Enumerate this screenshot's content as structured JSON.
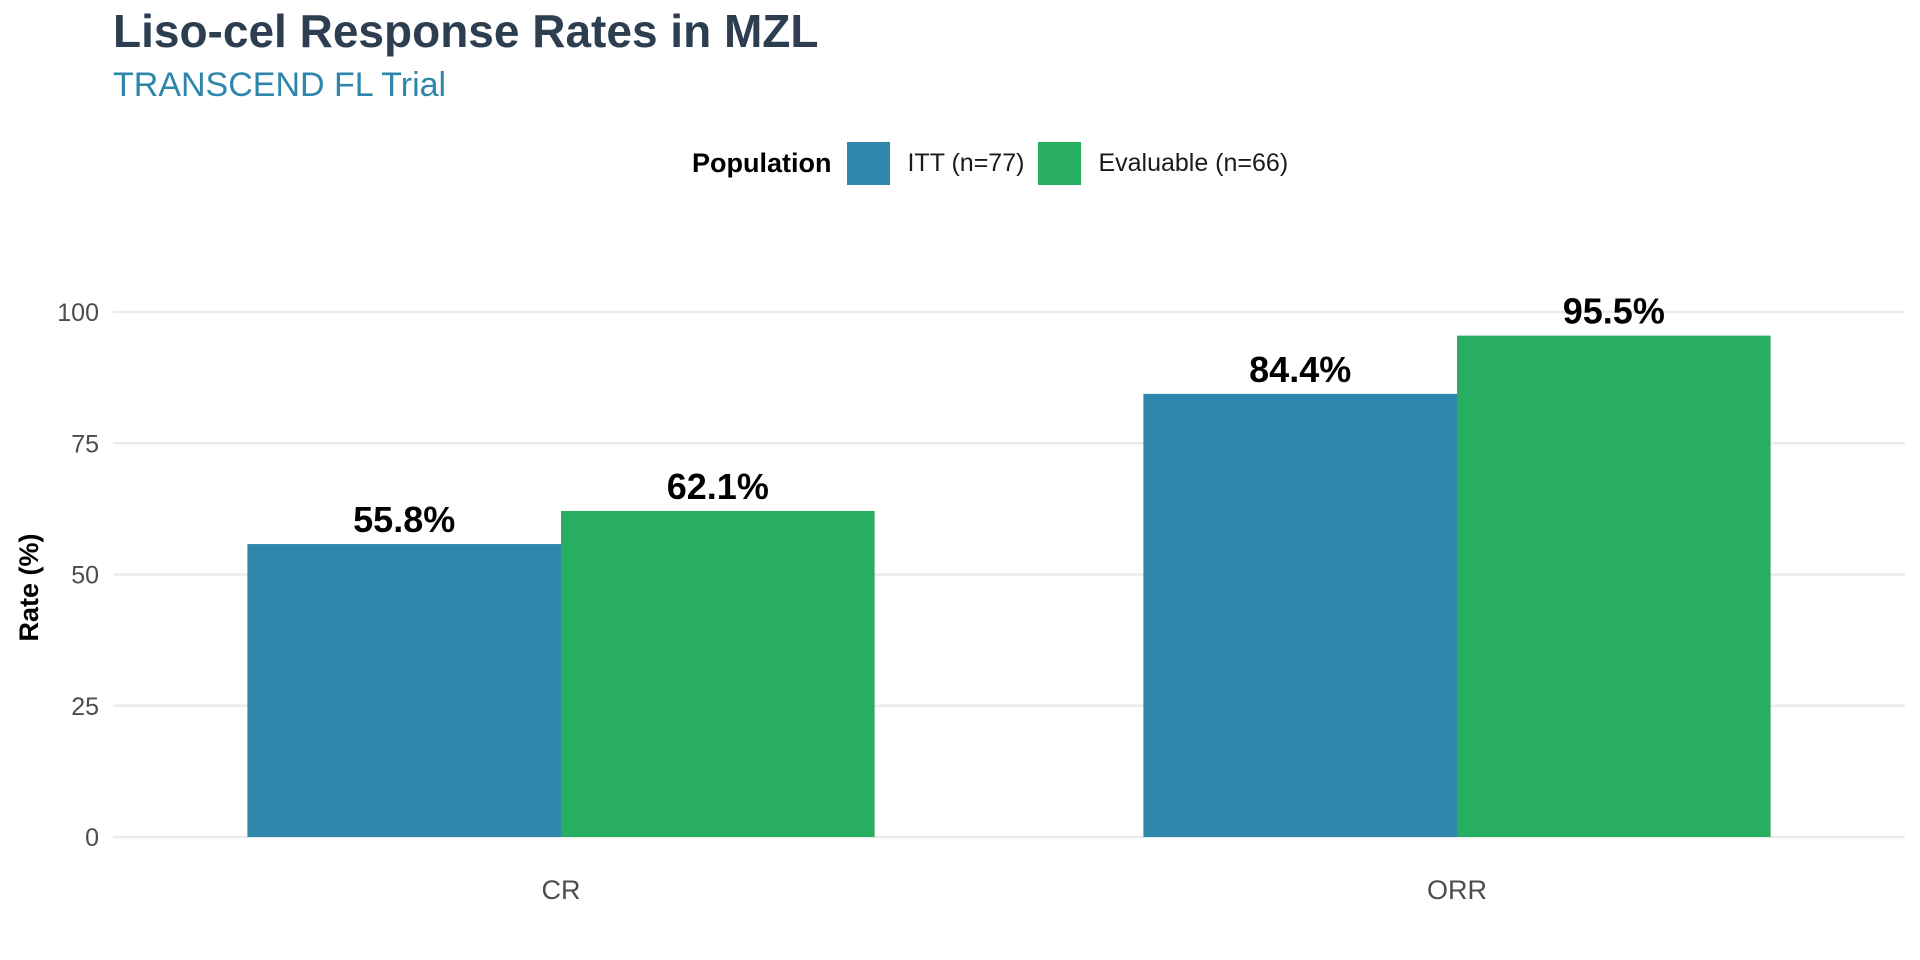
{
  "chart_data": {
    "type": "bar",
    "title": "Liso-cel Response Rates in MZL",
    "subtitle": "TRANSCEND FL Trial",
    "xlabel": "",
    "ylabel": "Rate (%)",
    "categories": [
      "CR",
      "ORR"
    ],
    "series": [
      {
        "name": "ITT (n=77)",
        "color": "#2e86ab",
        "values": [
          55.8,
          84.4
        ],
        "labels": [
          "55.8%",
          "84.4%"
        ]
      },
      {
        "name": "Evaluable (n=66)",
        "color": "#27ae60",
        "values": [
          62.1,
          95.5
        ],
        "labels": [
          "62.1%",
          "95.5%"
        ]
      }
    ],
    "legend_title": "Population",
    "legend_position": "top",
    "ylim": [
      0,
      100
    ],
    "yticks": [
      0,
      25,
      50,
      75,
      100
    ],
    "ytick_labels": [
      "0",
      "25",
      "50",
      "75",
      "100"
    ],
    "grid": "horizontal-major"
  }
}
